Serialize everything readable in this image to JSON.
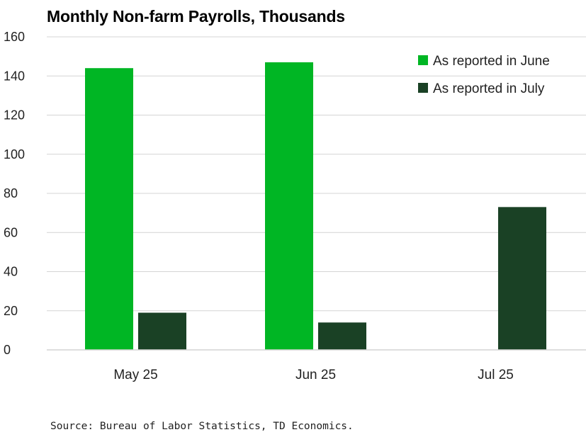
{
  "chart_data": {
    "type": "bar",
    "title": "Monthly Non-farm Payrolls, Thousands",
    "categories": [
      "May 25",
      "Jun 25",
      "Jul 25"
    ],
    "series": [
      {
        "name": "As reported in June",
        "color": "#00b624",
        "values": [
          144,
          147,
          null
        ]
      },
      {
        "name": "As reported in July",
        "color": "#1a4125",
        "values": [
          19,
          14,
          73
        ]
      }
    ],
    "xlabel": "",
    "ylabel": "",
    "ylim": [
      0,
      160
    ],
    "yticks": [
      0,
      20,
      40,
      60,
      80,
      100,
      120,
      140,
      160
    ],
    "grid": true,
    "legend_position": "top-right"
  },
  "source": "Source: Bureau of Labor Statistics, TD Economics."
}
